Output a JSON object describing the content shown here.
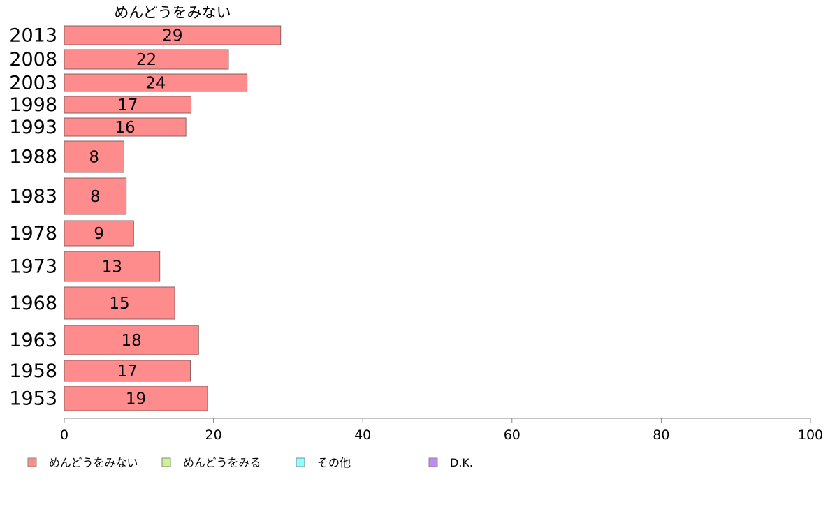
{
  "chart_data": {
    "type": "bar",
    "orientation": "horizontal",
    "series_label": "めんどうをみない",
    "categories": [
      "2013",
      "2008",
      "2003",
      "1998",
      "1993",
      "1988",
      "1983",
      "1978",
      "1973",
      "1968",
      "1963",
      "1958",
      "1953"
    ],
    "series": [
      {
        "name": "めんどうをみない",
        "values": [
          29,
          22,
          24.5,
          17,
          16.3,
          8,
          8.3,
          9.3,
          12.8,
          14.8,
          18,
          16.9,
          19.2
        ],
        "labels": [
          "29",
          "22",
          "24",
          "17",
          "16",
          "8",
          "8",
          "9",
          "13",
          "15",
          "18",
          "17",
          "19"
        ]
      }
    ],
    "xlim": [
      0,
      100
    ],
    "xticks": [
      "0",
      "20",
      "40",
      "60",
      "80",
      "100"
    ],
    "grid": false,
    "legend_placement": "bottom",
    "legend": [
      {
        "label": "めんどうをみない",
        "color": "#ff8c8c"
      },
      {
        "label": "めんどうをみる",
        "color": "#c8f58c"
      },
      {
        "label": "その他",
        "color": "#8cffff"
      },
      {
        "label": "D.K.",
        "color": "#be8cf0"
      }
    ]
  }
}
